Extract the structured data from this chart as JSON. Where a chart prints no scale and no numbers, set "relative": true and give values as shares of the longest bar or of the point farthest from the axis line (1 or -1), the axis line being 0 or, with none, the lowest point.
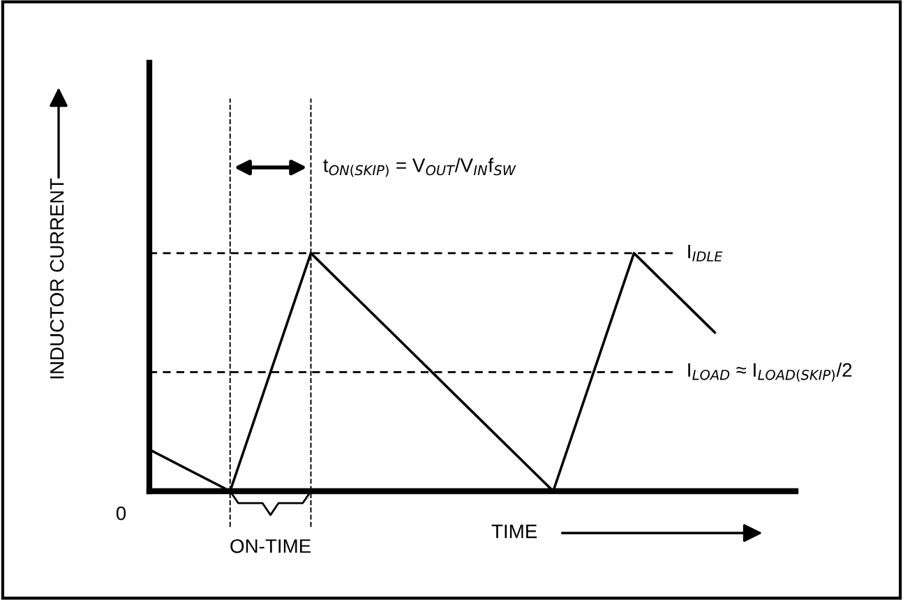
{
  "chart_data": {
    "type": "line",
    "relative": true,
    "xlabel": "TIME",
    "ylabel": "INDUCTOR CURRENT",
    "categories": [
      null,
      null,
      null,
      null,
      null,
      null,
      null,
      null
    ],
    "series": [
      {
        "color": "#000000",
        "values": [
          0.175,
          0,
          1,
          0.667,
          0.333,
          0,
          1,
          0.667
        ]
      }
    ],
    "ref_lines": [
      {
        "axis": "y",
        "value": 1,
        "label": "I$_{IDLE}$",
        "line_style": "dashed",
        "color": "#000000"
      },
      {
        "axis": "y",
        "value": 0.5,
        "label": "I$_{LOAD}$ ≈ I$_{LOAD(SKIP)}$/2",
        "line_style": "dashed",
        "color": "#000000"
      }
    ],
    "annotations": [
      "t$_{ON(SKIP)}$ = V$_{OUT}$/V$_{IN}$f$_{SW}$",
      "ON-TIME",
      "0"
    ],
    "legend": false,
    "marker": "none",
    "line_style": "solid"
  }
}
